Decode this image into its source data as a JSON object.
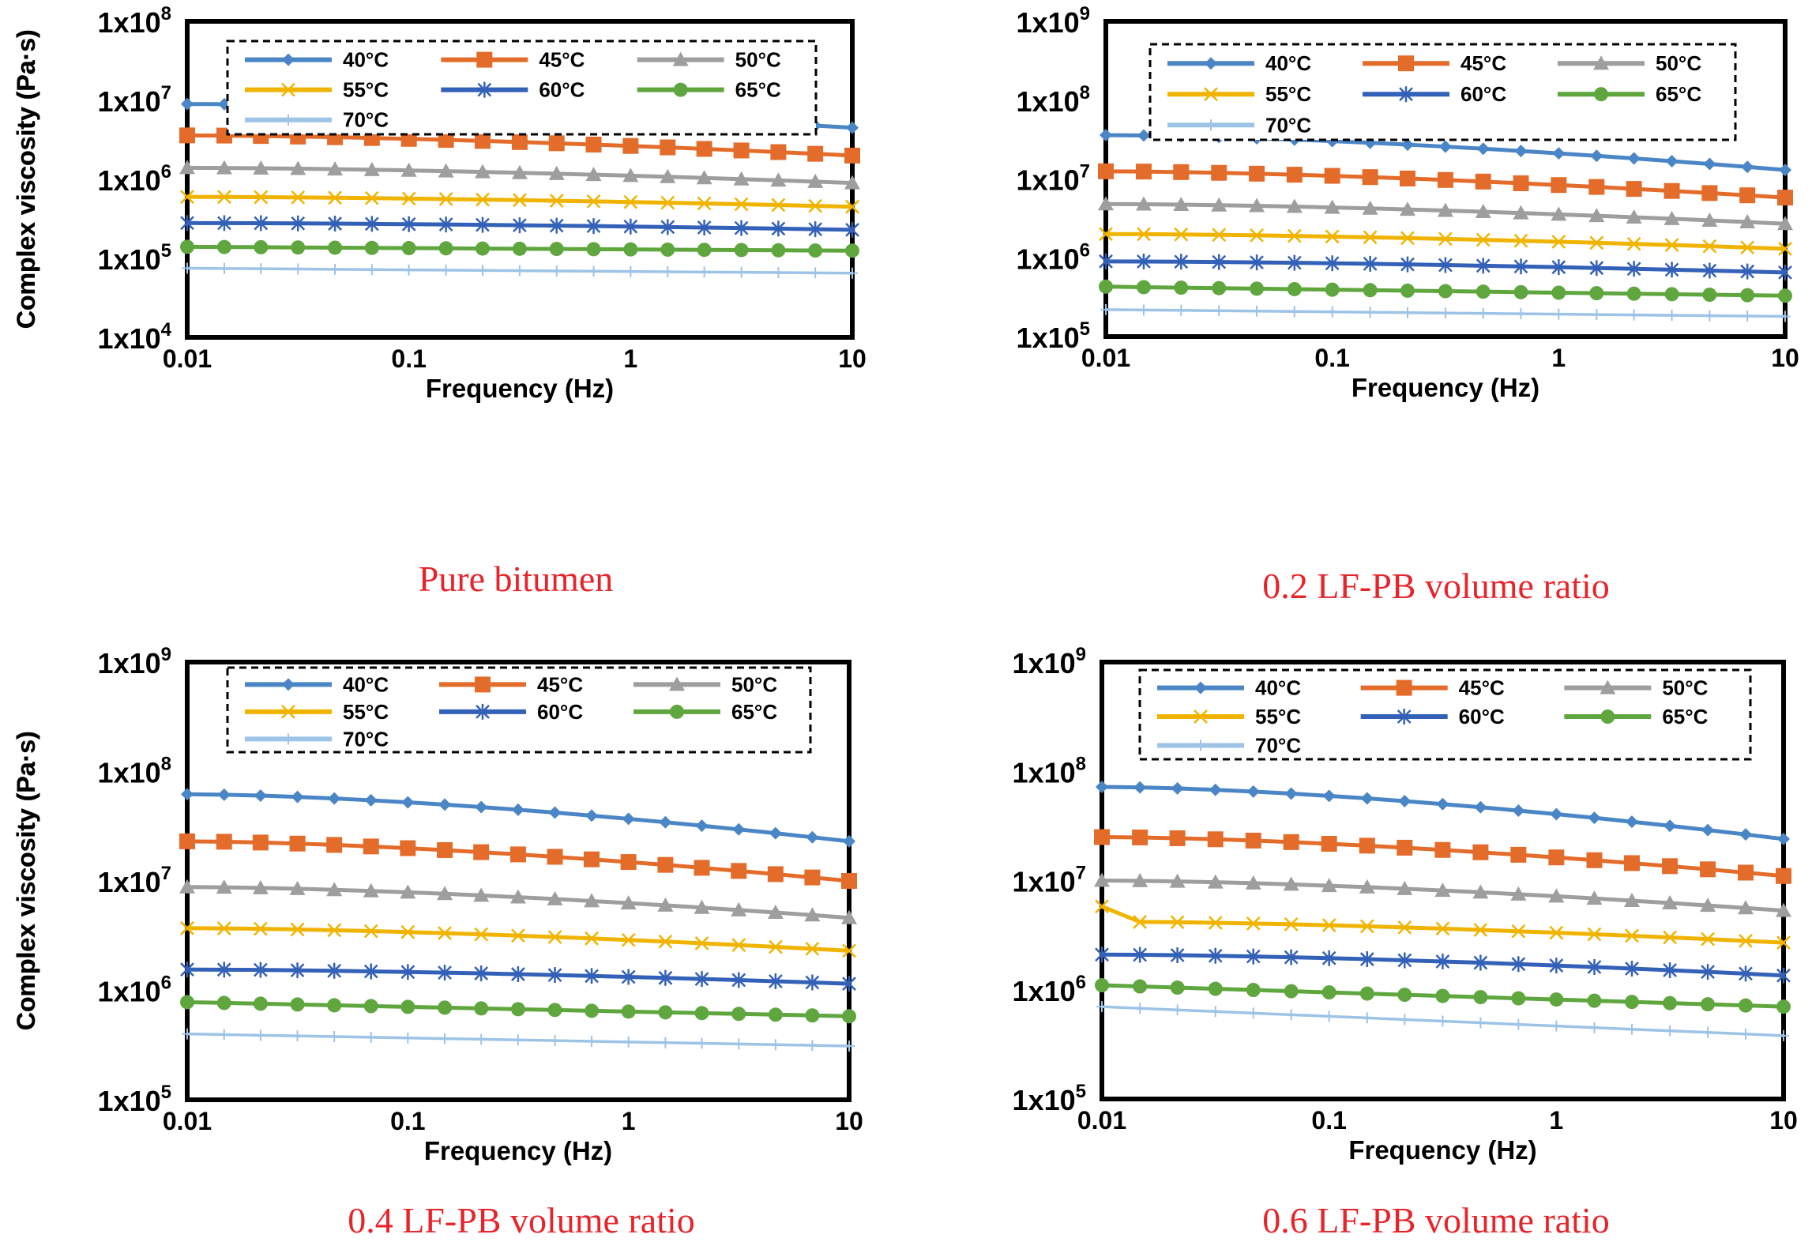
{
  "figure": {
    "ylabel": "Complex viscosity (Pa·s)",
    "xlabel": "Frequency (Hz)",
    "caption_color": "#e8232a",
    "frequencies": [
      0.01,
      0.0147,
      0.0215,
      0.0316,
      0.0464,
      0.0681,
      0.1,
      0.147,
      0.215,
      0.316,
      0.464,
      0.681,
      1,
      1.47,
      2.15,
      3.16,
      4.64,
      6.81,
      10
    ],
    "series_styles": [
      {
        "name": "40°C",
        "color": "#4a86c5",
        "marker": "diamond"
      },
      {
        "name": "45°C",
        "color": "#e46c2a",
        "marker": "square"
      },
      {
        "name": "50°C",
        "color": "#9e9e9e",
        "marker": "triangle"
      },
      {
        "name": "55°C",
        "color": "#f0b400",
        "marker": "x"
      },
      {
        "name": "60°C",
        "color": "#3461b8",
        "marker": "star"
      },
      {
        "name": "65°C",
        "color": "#5fa63f",
        "marker": "circle"
      },
      {
        "name": "70°C",
        "color": "#9dc3e6",
        "marker": "plus"
      }
    ]
  },
  "chart_data": [
    {
      "type": "line",
      "title": "Pure bitumen",
      "xlabel": "Frequency (Hz)",
      "ylabel": "Complex viscosity (Pa·s)",
      "xscale": "log",
      "yscale": "log",
      "xlim": [
        0.01,
        10
      ],
      "ylim": [
        10000,
        100000000
      ],
      "xticks": [
        "0.01",
        "0.1",
        "1",
        "10"
      ],
      "yticks": [
        {
          "m": "1x10",
          "e": "8"
        },
        {
          "m": "1x10",
          "e": "7"
        },
        {
          "m": "1x10",
          "e": "6"
        },
        {
          "m": "1x10",
          "e": "5"
        },
        {
          "m": "1x10",
          "e": "4"
        }
      ],
      "legend": "top, dashed box",
      "series": [
        {
          "name": "40°C",
          "start": 9000000,
          "end": 4500000,
          "shape": "concave"
        },
        {
          "name": "45°C",
          "start": 3600000,
          "end": 2000000,
          "shape": "concave"
        },
        {
          "name": "50°C",
          "start": 1400000,
          "end": 900000,
          "shape": "concave"
        },
        {
          "name": "55°C",
          "start": 600000,
          "end": 450000,
          "shape": "concave"
        },
        {
          "name": "60°C",
          "start": 280000,
          "end": 230000,
          "shape": "concave"
        },
        {
          "name": "65°C",
          "start": 140000,
          "end": 125000,
          "shape": "linear"
        },
        {
          "name": "70°C",
          "start": 75000,
          "end": 65000,
          "shape": "linear"
        }
      ]
    },
    {
      "type": "line",
      "title": "0.2 LF-PB volume ratio",
      "xlabel": "Frequency (Hz)",
      "ylabel": "Complex viscosity (Pa·s)",
      "xscale": "log",
      "yscale": "log",
      "xlim": [
        0.01,
        10
      ],
      "ylim": [
        100000,
        1000000000
      ],
      "xticks": [
        "0.01",
        "0.1",
        "1",
        "10"
      ],
      "yticks": [
        {
          "m": "1x10",
          "e": "9"
        },
        {
          "m": "1x10",
          "e": "8"
        },
        {
          "m": "1x10",
          "e": "7"
        },
        {
          "m": "1x10",
          "e": "6"
        },
        {
          "m": "1x10",
          "e": "5"
        }
      ],
      "legend": "top, dashed box",
      "series": [
        {
          "name": "40°C",
          "start": 36000000,
          "end": 13000000,
          "shape": "concave"
        },
        {
          "name": "45°C",
          "start": 12500000,
          "end": 5800000,
          "shape": "concave"
        },
        {
          "name": "50°C",
          "start": 4800000,
          "end": 2700000,
          "shape": "concave"
        },
        {
          "name": "55°C",
          "start": 2000000,
          "end": 1300000,
          "shape": "concave"
        },
        {
          "name": "60°C",
          "start": 900000,
          "end": 650000,
          "shape": "concave"
        },
        {
          "name": "65°C",
          "start": 430000,
          "end": 330000,
          "shape": "linear"
        },
        {
          "name": "70°C",
          "start": 220000,
          "end": 180000,
          "shape": "linear"
        }
      ]
    },
    {
      "type": "line",
      "title": "0.4 LF-PB volume ratio",
      "xlabel": "Frequency (Hz)",
      "ylabel": "Complex viscosity (Pa·s)",
      "xscale": "log",
      "yscale": "log",
      "xlim": [
        0.01,
        10
      ],
      "ylim": [
        100000,
        1000000000
      ],
      "xticks": [
        "0.01",
        "0.1",
        "1",
        "10"
      ],
      "yticks": [
        {
          "m": "1x10",
          "e": "9"
        },
        {
          "m": "1x10",
          "e": "8"
        },
        {
          "m": "1x10",
          "e": "7"
        },
        {
          "m": "1x10",
          "e": "6"
        },
        {
          "m": "1x10",
          "e": "5"
        }
      ],
      "legend": "top, dashed box",
      "series": [
        {
          "name": "40°C",
          "start": 62000000,
          "end": 23000000,
          "shape": "concave"
        },
        {
          "name": "45°C",
          "start": 23000000,
          "end": 10000000,
          "shape": "concave"
        },
        {
          "name": "50°C",
          "start": 8800000,
          "end": 4600000,
          "shape": "concave"
        },
        {
          "name": "55°C",
          "start": 3700000,
          "end": 2300000,
          "shape": "concave"
        },
        {
          "name": "60°C",
          "start": 1550000,
          "end": 1150000,
          "shape": "concave"
        },
        {
          "name": "65°C",
          "start": 780000,
          "end": 580000,
          "shape": "linear"
        },
        {
          "name": "70°C",
          "start": 400000,
          "end": 310000,
          "shape": "linear"
        }
      ]
    },
    {
      "type": "line",
      "title": "0.6 LF-PB volume ratio",
      "xlabel": "Frequency (Hz)",
      "ylabel": "Complex viscosity (Pa·s)",
      "xscale": "log",
      "yscale": "log",
      "xlim": [
        0.01,
        10
      ],
      "ylim": [
        100000,
        1000000000
      ],
      "xticks": [
        "0.01",
        "0.1",
        "1",
        "10"
      ],
      "yticks": [
        {
          "m": "1x10",
          "e": "9"
        },
        {
          "m": "1x10",
          "e": "8"
        },
        {
          "m": "1x10",
          "e": "7"
        },
        {
          "m": "1x10",
          "e": "6"
        },
        {
          "m": "1x10",
          "e": "5"
        }
      ],
      "legend": "top, dashed box",
      "series": [
        {
          "name": "40°C",
          "start": 72000000,
          "end": 24000000,
          "shape": "concave"
        },
        {
          "name": "45°C",
          "start": 25000000,
          "end": 11000000,
          "shape": "concave"
        },
        {
          "name": "50°C",
          "start": 10000000,
          "end": 5300000,
          "shape": "concave"
        },
        {
          "name": "55°C",
          "start": 5800000,
          "end": 2700000,
          "shape": "concave",
          "drop_after_first": 0.72
        },
        {
          "name": "60°C",
          "start": 2100000,
          "end": 1350000,
          "shape": "concave"
        },
        {
          "name": "65°C",
          "start": 1100000,
          "end": 700000,
          "shape": "linear"
        },
        {
          "name": "70°C",
          "start": 700000,
          "end": 380000,
          "shape": "linear"
        }
      ]
    }
  ]
}
